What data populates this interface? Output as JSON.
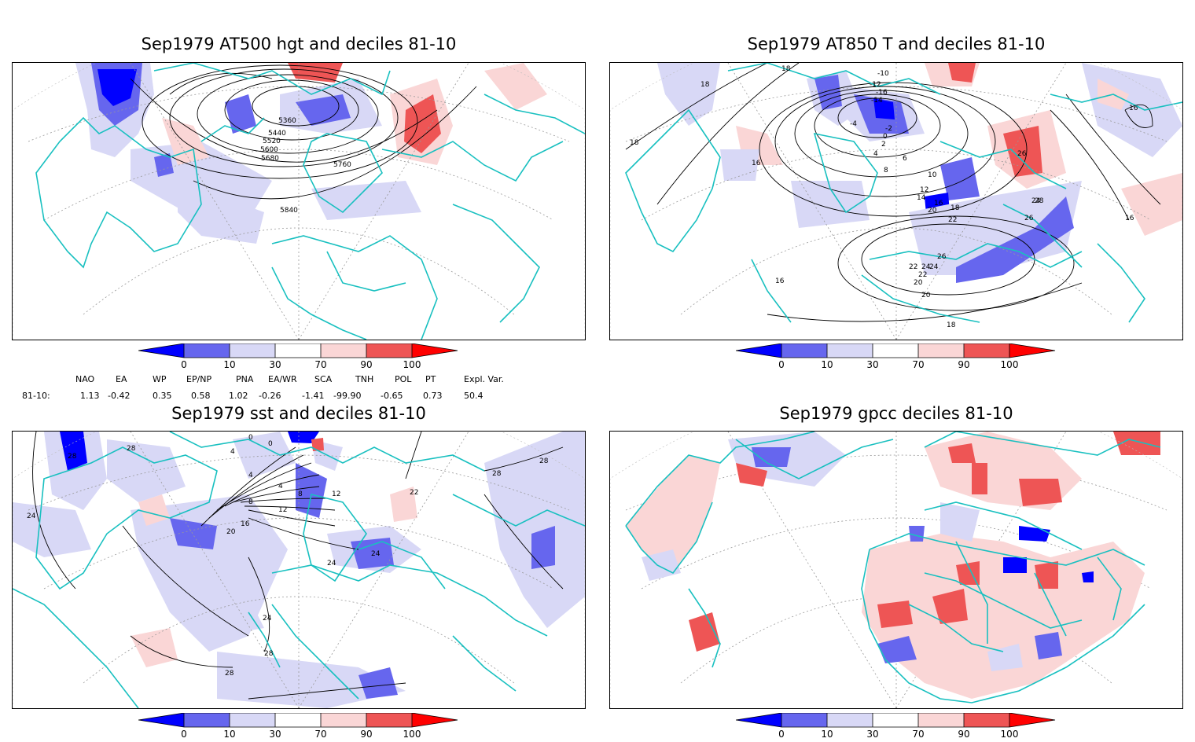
{
  "panels": [
    {
      "id": "p1",
      "title": "Sep1979 AT500 hgt and deciles 81-10",
      "contour_labels": [
        "5360",
        "5440",
        "5520",
        "5600",
        "5680",
        "5760",
        "5840"
      ]
    },
    {
      "id": "p2",
      "title": "Sep1979 AT850 T and deciles 81-10",
      "contour_labels": [
        "18",
        "18",
        "18",
        "16",
        "16",
        "16",
        "16",
        "-10",
        "-12",
        "-14",
        "-16",
        "-4",
        "-2",
        "0",
        "2",
        "4",
        "6",
        "8",
        "10",
        "12",
        "14",
        "16",
        "18",
        "20",
        "22",
        "24",
        "26",
        "28",
        "26",
        "26",
        "24",
        "22",
        "20",
        "22",
        "20",
        "18",
        "24"
      ]
    },
    {
      "id": "p3",
      "title": "Sep1979 sst and deciles 81-10",
      "contour_labels": [
        "28",
        "28",
        "24",
        "0",
        "0",
        "4",
        "4",
        "4",
        "8",
        "8",
        "12",
        "12",
        "16",
        "20",
        "24",
        "24",
        "24",
        "28",
        "28",
        "28",
        "28",
        "22"
      ]
    },
    {
      "id": "p4",
      "title": "Sep1979 gpcc deciles 81-10",
      "contour_labels": []
    }
  ],
  "colorbar": {
    "tick_labels": [
      "0",
      "10",
      "30",
      "70",
      "90",
      "100"
    ],
    "colors": [
      "#0000ff",
      "#6666ee",
      "#d8d8f6",
      "#ffffff",
      "#fad6d6",
      "#ee5555",
      "#ff0000"
    ]
  },
  "indices": {
    "headers": [
      "NAO",
      "EA",
      "WP",
      "EP/NP",
      "PNA",
      "EA/WR",
      "SCA",
      "TNH",
      "POL",
      "PT",
      "Expl. Var."
    ],
    "row_label": "81-10:",
    "values": [
      "1.13",
      "-0.42",
      "0.35",
      "0.58",
      "1.02",
      "-0.26",
      "-1.41",
      "-99.90",
      "-0.65",
      "0.73",
      "50.4"
    ]
  }
}
